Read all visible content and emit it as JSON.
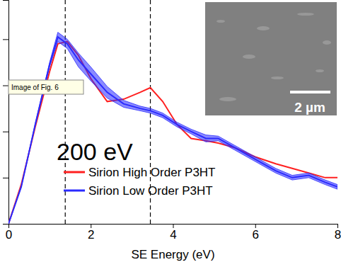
{
  "chart_data": {
    "type": "line",
    "x_label": "SE Energy (eV)",
    "annotations": [
      "200 eV",
      "Image of Fig. 6",
      "2 µm"
    ],
    "x": [
      0,
      0.31,
      0.65,
      1.0,
      1.2,
      1.43,
      1.7,
      2.0,
      2.4,
      2.8,
      3.2,
      3.45,
      3.75,
      4.1,
      4.44,
      4.8,
      5.1,
      5.5,
      6.0,
      6.5,
      6.9,
      7.3,
      7.7,
      8.0
    ],
    "series": [
      {
        "name": "Sirion High Order P3HT",
        "color": "#ff2020",
        "values": [
          0,
          0.17,
          0.42,
          0.66,
          0.78,
          0.79,
          0.73,
          0.63,
          0.53,
          0.54,
          0.57,
          0.59,
          0.53,
          0.43,
          0.37,
          0.36,
          0.35,
          0.33,
          0.29,
          0.26,
          0.24,
          0.22,
          0.2,
          0.2
        ]
      },
      {
        "name": "Sirion Low Order P3HT",
        "color": "#2a2aff",
        "values": [
          0,
          0.16,
          0.43,
          0.69,
          0.81,
          0.78,
          0.71,
          0.65,
          0.57,
          0.52,
          0.5,
          0.49,
          0.47,
          0.43,
          0.4,
          0.37,
          0.37,
          0.33,
          0.28,
          0.23,
          0.2,
          0.21,
          0.18,
          0.16
        ],
        "error": [
          0,
          0,
          0.005,
          0.01,
          0.02,
          0.02,
          0.03,
          0.03,
          0.025,
          0.015,
          0.01,
          0.01,
          0.01,
          0.01,
          0.01,
          0.015,
          0.01,
          0.01,
          0.01,
          0.01,
          0.01,
          0.01,
          0.01,
          0.01
        ]
      }
    ],
    "reference_lines": [
      1.38,
      3.45
    ],
    "xlim": [
      0,
      8
    ],
    "xticks": [
      0,
      2,
      4,
      6,
      8
    ],
    "ylim": [
      0,
      0.97
    ],
    "yticks": [
      0.2,
      0.4,
      0.6,
      0.8
    ],
    "tick_labels": "x",
    "grid": false
  }
}
